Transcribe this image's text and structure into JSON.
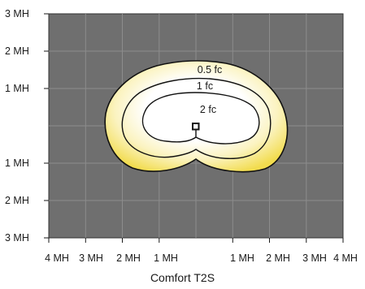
{
  "caption": "Comfort T2S",
  "y_ticks": [
    "3 MH",
    "2 MH",
    "1 MH",
    "1 MH",
    "2 MH",
    "3 MH"
  ],
  "x_ticks": [
    "4 MH",
    "3 MH",
    "2 MH",
    "1 MH",
    "1 MH",
    "2 MH",
    "3 MH",
    "4 MH"
  ],
  "contours": [
    {
      "label": "0.5 fc"
    },
    {
      "label": "1 fc"
    },
    {
      "label": "2 fc"
    }
  ],
  "colors": {
    "background": "#6f6f6f",
    "grid": "#8c8c8c",
    "glow_outer": "#f2dc4e",
    "glow_inner": "#ffffff",
    "contour_stroke": "#111111"
  },
  "icons": {
    "fixture": "light-fixture-icon"
  }
}
